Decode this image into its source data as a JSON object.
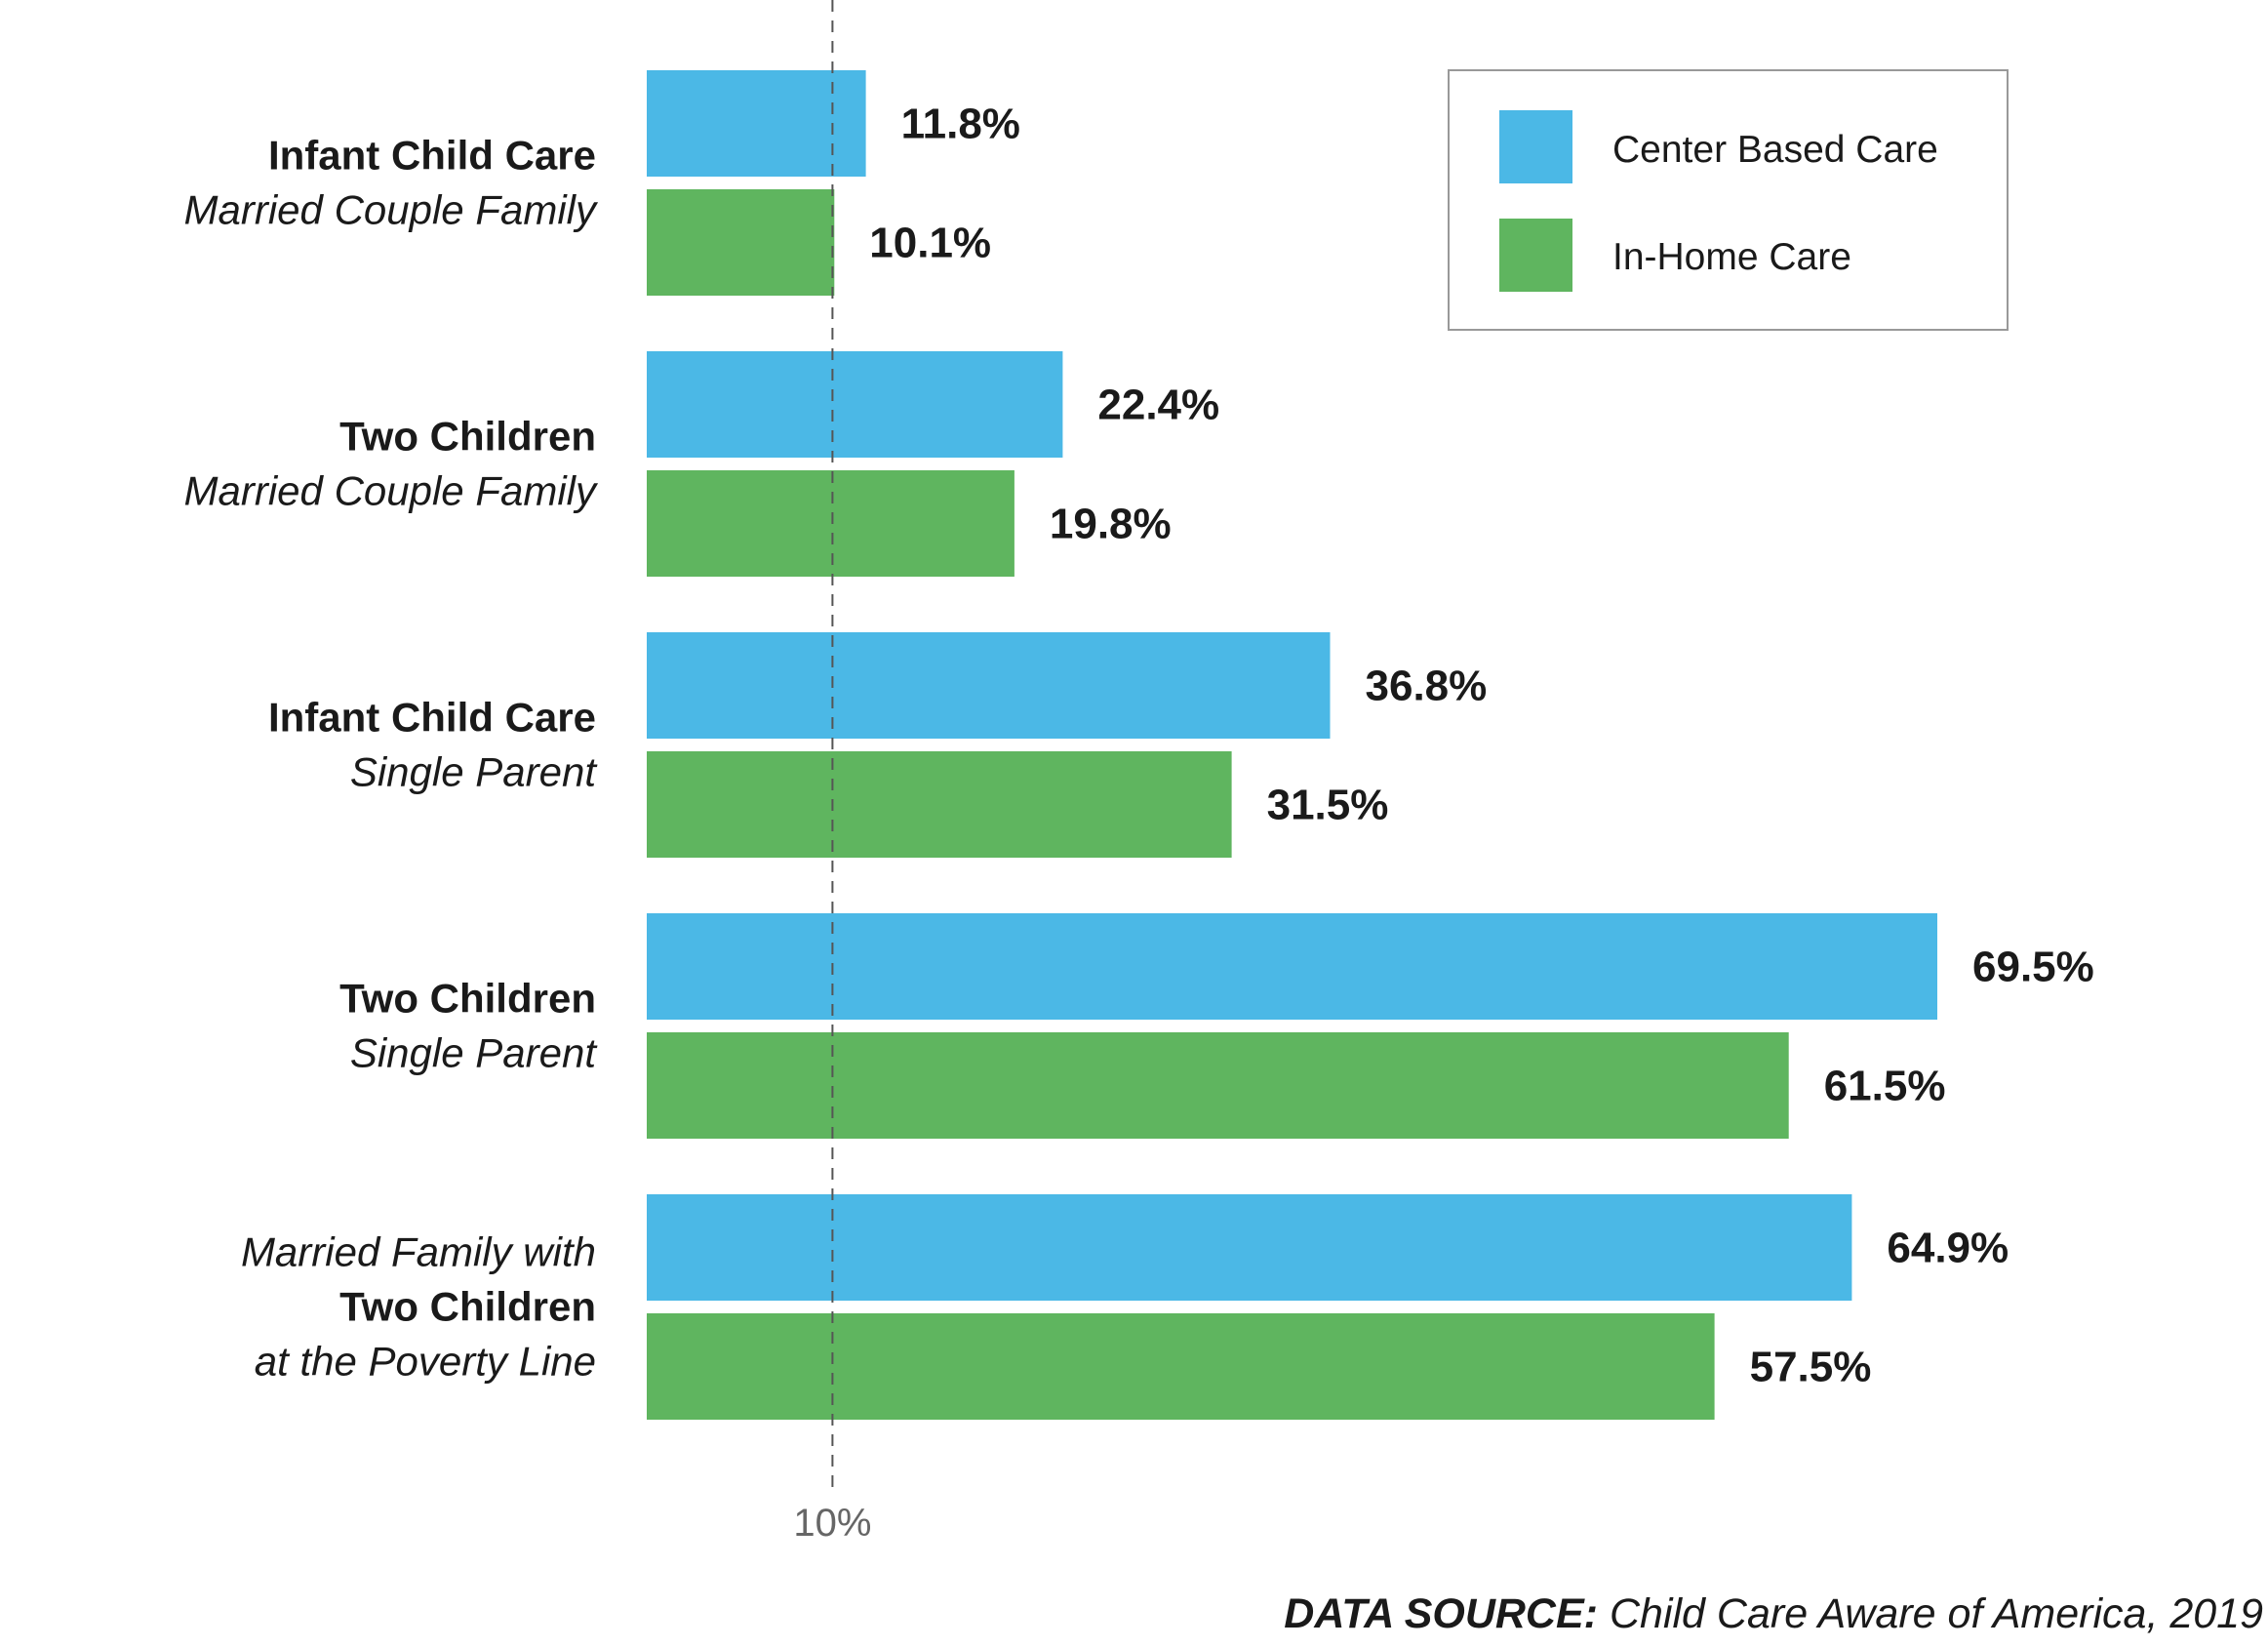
{
  "chart_data": {
    "type": "bar",
    "orientation": "horizontal",
    "categories": [
      {
        "lines": [
          {
            "text": "Infant Child Care",
            "style": "bold"
          },
          {
            "text": "Married Couple Family",
            "style": "italic"
          }
        ]
      },
      {
        "lines": [
          {
            "text": "Two Children",
            "style": "bold"
          },
          {
            "text": "Married Couple Family",
            "style": "italic"
          }
        ]
      },
      {
        "lines": [
          {
            "text": "Infant Child Care",
            "style": "bold"
          },
          {
            "text": "Single Parent",
            "style": "italic"
          }
        ]
      },
      {
        "lines": [
          {
            "text": "Two Children",
            "style": "bold"
          },
          {
            "text": "Single Parent",
            "style": "italic"
          }
        ]
      },
      {
        "lines": [
          {
            "text": "Married Family with",
            "style": "italic"
          },
          {
            "text": "Two Children",
            "style": "bold"
          },
          {
            "text": "at the Poverty Line",
            "style": "italic"
          }
        ]
      }
    ],
    "series": [
      {
        "name": "Center Based Care",
        "color": "#4bb8e6",
        "values": [
          11.8,
          22.4,
          36.8,
          69.5,
          64.9
        ],
        "labels": [
          "11.8%",
          "22.4%",
          "36.8%",
          "69.5%",
          "64.9%"
        ]
      },
      {
        "name": "In-Home Care",
        "color": "#5fb55f",
        "values": [
          10.1,
          19.8,
          31.5,
          61.5,
          57.5
        ],
        "labels": [
          "10.1%",
          "19.8%",
          "31.5%",
          "61.5%",
          "57.5%"
        ]
      }
    ],
    "xlim": [
      0,
      72
    ],
    "reference_line": {
      "value": 10,
      "label": "10%",
      "style": "dashed"
    },
    "legend": {
      "position": "top-right",
      "border": true
    },
    "grid": false,
    "source": {
      "label": "DATA SOURCE:",
      "text": "Child Care Aware of America, 2019"
    }
  }
}
